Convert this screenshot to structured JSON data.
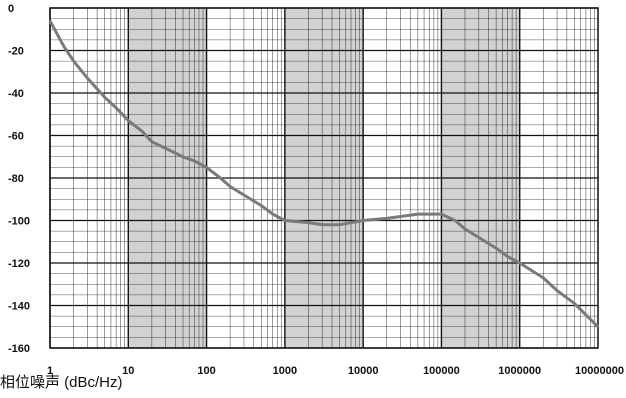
{
  "chart_data": {
    "type": "line",
    "title": "",
    "xlabel": "",
    "ylabel": "相位噪声 (dBc/Hz)",
    "x_scale": "log",
    "xlim": [
      1,
      10000000
    ],
    "ylim": [
      -160,
      0
    ],
    "x_ticks": [
      "1",
      "10",
      "100",
      "1000",
      "10000",
      "100000",
      "1000000",
      "10000000"
    ],
    "y_ticks": [
      "0",
      "-20",
      "-40",
      "-60",
      "-80",
      "-100",
      "-120",
      "-140",
      "-160"
    ],
    "grid": true,
    "legend": "none",
    "colors": {
      "series": "#7a7a7a",
      "grid": "#111111",
      "background": "#ffffff"
    },
    "series": [
      {
        "x": [
          1,
          1.5,
          2,
          3,
          5,
          7,
          10,
          15,
          20,
          30,
          50,
          70,
          100,
          150,
          200,
          300,
          500,
          700,
          1000,
          2000,
          3000,
          5000,
          10000,
          20000,
          50000,
          100000,
          150000,
          200000,
          300000,
          500000,
          700000,
          1000000,
          2000000,
          3000000,
          5000000,
          10000000
        ],
        "y": [
          -6,
          -18,
          -25,
          -33,
          -42,
          -47,
          -53,
          -58,
          -63,
          -66,
          -70,
          -72,
          -75,
          -80,
          -84,
          -88,
          -93,
          -97,
          -100,
          -101,
          -102,
          -102,
          -100,
          -99,
          -97,
          -97,
          -100,
          -104,
          -108,
          -113,
          -117,
          -120,
          -127,
          -133,
          -139,
          -150
        ]
      }
    ]
  }
}
